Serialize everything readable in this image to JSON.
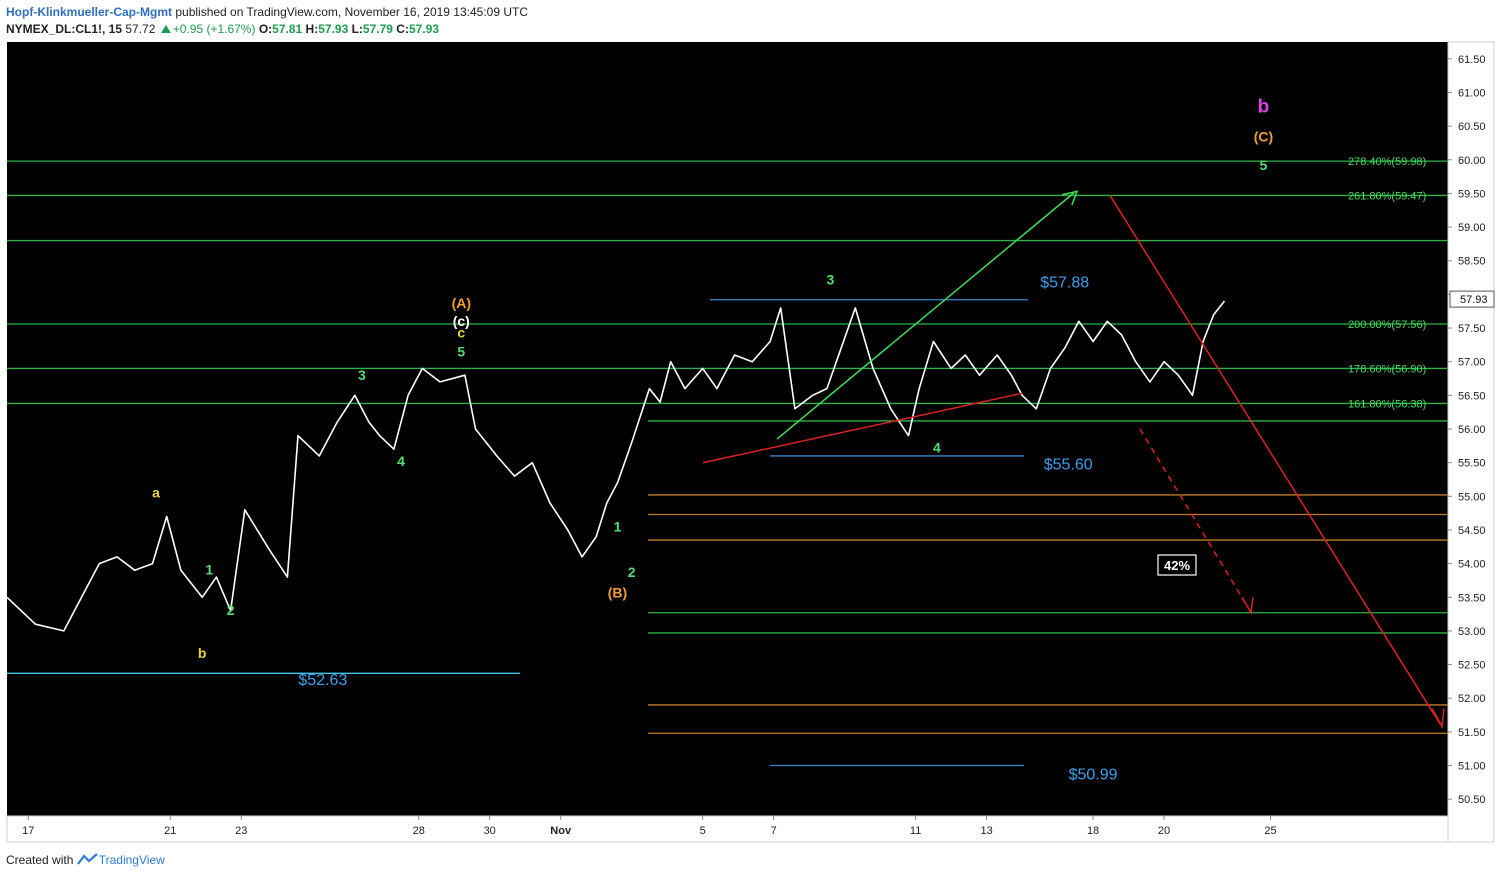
{
  "header": {
    "publisher": "Hopf-Klinkmueller-Cap-Mgmt",
    "published_text": "published on TradingView.com, November 16, 2019 13:45:09 UTC",
    "symbol": "NYMEX_DL:CL1!, 15",
    "last": "57.72",
    "change": "+0.95 (+1.67%)",
    "o_label": "O:",
    "o": "57.81",
    "h_label": "H:",
    "h": "57.93",
    "l_label": "L:",
    "l": "57.79",
    "c_label": "C:",
    "c": "57.93"
  },
  "footer": {
    "created": "Created with",
    "brand": "TradingView"
  },
  "chart_data": {
    "type": "line",
    "ylim": [
      50.25,
      61.75
    ],
    "y_ticks": [
      50.5,
      51,
      51.5,
      52,
      52.5,
      53,
      53.5,
      54,
      54.5,
      55,
      55.5,
      56,
      56.5,
      57,
      57.5,
      58,
      58.5,
      59,
      59.5,
      60,
      60.5,
      61,
      61.5
    ],
    "x_ticks": [
      "17",
      "21",
      "23",
      "28",
      "30",
      "Nov",
      "5",
      "7",
      "11",
      "13",
      "18",
      "20",
      "25"
    ],
    "x_tick_pos": [
      0,
      4,
      6,
      11,
      13,
      15,
      19,
      21,
      25,
      27,
      30,
      32,
      35
    ],
    "xlim": [
      -0.6,
      40
    ],
    "current_price": "57.93",
    "price_path": [
      [
        -0.6,
        53.5
      ],
      [
        0.2,
        53.1
      ],
      [
        1.0,
        53.0
      ],
      [
        2.0,
        54.0
      ],
      [
        2.5,
        54.1
      ],
      [
        3.0,
        53.9
      ],
      [
        3.5,
        54.0
      ],
      [
        3.9,
        54.7
      ],
      [
        4.3,
        53.9
      ],
      [
        4.9,
        53.5
      ],
      [
        5.3,
        53.8
      ],
      [
        5.7,
        53.3
      ],
      [
        6.1,
        54.8
      ],
      [
        6.8,
        54.2
      ],
      [
        7.3,
        53.8
      ],
      [
        7.6,
        55.9
      ],
      [
        8.2,
        55.6
      ],
      [
        8.7,
        56.1
      ],
      [
        9.2,
        56.5
      ],
      [
        9.6,
        56.1
      ],
      [
        9.9,
        55.9
      ],
      [
        10.3,
        55.7
      ],
      [
        10.7,
        56.5
      ],
      [
        11.1,
        56.9
      ],
      [
        11.6,
        56.7
      ],
      [
        12.3,
        56.8
      ],
      [
        12.6,
        56.0
      ],
      [
        13.2,
        55.6
      ],
      [
        13.7,
        55.3
      ],
      [
        14.2,
        55.5
      ],
      [
        14.7,
        54.9
      ],
      [
        15.2,
        54.5
      ],
      [
        15.6,
        54.1
      ],
      [
        16.0,
        54.4
      ],
      [
        16.3,
        54.9
      ],
      [
        16.6,
        55.2
      ],
      [
        17.0,
        55.8
      ],
      [
        17.5,
        56.6
      ],
      [
        17.8,
        56.4
      ],
      [
        18.1,
        57.0
      ],
      [
        18.5,
        56.6
      ],
      [
        19.0,
        56.9
      ],
      [
        19.4,
        56.6
      ],
      [
        19.9,
        57.1
      ],
      [
        20.4,
        57.0
      ],
      [
        20.9,
        57.3
      ],
      [
        21.2,
        57.8
      ],
      [
        21.6,
        56.3
      ],
      [
        22.1,
        56.5
      ],
      [
        22.5,
        56.6
      ],
      [
        22.9,
        57.2
      ],
      [
        23.3,
        57.8
      ],
      [
        23.8,
        56.9
      ],
      [
        24.3,
        56.3
      ],
      [
        24.8,
        55.9
      ],
      [
        25.1,
        56.6
      ],
      [
        25.5,
        57.3
      ],
      [
        26.0,
        56.9
      ],
      [
        26.4,
        57.1
      ],
      [
        26.8,
        56.8
      ],
      [
        27.3,
        57.1
      ],
      [
        27.7,
        56.8
      ],
      [
        28.0,
        56.5
      ],
      [
        28.4,
        56.3
      ],
      [
        28.8,
        56.9
      ],
      [
        29.2,
        57.2
      ],
      [
        29.6,
        57.6
      ],
      [
        30.0,
        57.3
      ],
      [
        30.4,
        57.6
      ],
      [
        30.8,
        57.4
      ],
      [
        31.2,
        57.0
      ],
      [
        31.6,
        56.7
      ],
      [
        32.0,
        57.0
      ],
      [
        32.4,
        56.8
      ],
      [
        32.8,
        56.5
      ],
      [
        33.1,
        57.3
      ],
      [
        33.4,
        57.7
      ],
      [
        33.7,
        57.9
      ]
    ],
    "annotations": [
      {
        "text": "a",
        "x": 3.6,
        "y": 54.98,
        "color": "#e8d530"
      },
      {
        "text": "b",
        "x": 4.9,
        "y": 52.6,
        "color": "#e8d530"
      },
      {
        "text": "1",
        "x": 5.1,
        "y": 53.84,
        "color": "#50e070"
      },
      {
        "text": "2",
        "x": 5.7,
        "y": 53.24,
        "color": "#50e070"
      },
      {
        "text": "3",
        "x": 9.4,
        "y": 56.73,
        "color": "#50e070"
      },
      {
        "text": "4",
        "x": 10.5,
        "y": 55.45,
        "color": "#50e070"
      },
      {
        "text": "5",
        "x": 12.2,
        "y": 57.08,
        "color": "#50e070"
      },
      {
        "text": "c",
        "x": 12.2,
        "y": 57.36,
        "color": "#e8d530"
      },
      {
        "text": "(c)",
        "x": 12.2,
        "y": 57.53,
        "color": "#ffffff"
      },
      {
        "text": "(A)",
        "x": 12.2,
        "y": 57.8,
        "color": "#f0a030"
      },
      {
        "text": "1",
        "x": 16.6,
        "y": 54.48,
        "color": "#50e070"
      },
      {
        "text": "2",
        "x": 17.0,
        "y": 53.8,
        "color": "#50e070"
      },
      {
        "text": "(B)",
        "x": 16.6,
        "y": 53.5,
        "color": "#f0a030"
      },
      {
        "text": "3",
        "x": 22.6,
        "y": 58.15,
        "color": "#50e070"
      },
      {
        "text": "4",
        "x": 25.6,
        "y": 55.65,
        "color": "#50e070"
      },
      {
        "text": "5",
        "x": 34.8,
        "y": 59.85,
        "color": "#50e070"
      },
      {
        "text": "(C)",
        "x": 34.8,
        "y": 60.27,
        "color": "#f0a030"
      },
      {
        "text": "b",
        "x": 34.8,
        "y": 60.7,
        "color": "#e040e0"
      }
    ],
    "price_labels": [
      {
        "text": "$52.63",
        "x": 8.3,
        "y": 52.2
      },
      {
        "text": "$57.88",
        "x": 29.2,
        "y": 58.1
      },
      {
        "text": "$55.60",
        "x": 29.3,
        "y": 55.4
      },
      {
        "text": "$50.99",
        "x": 30.0,
        "y": 50.79
      }
    ],
    "fib_labels": [
      {
        "text": "278.40%(59.98)",
        "y": 59.98
      },
      {
        "text": "261.80%(59.47)",
        "y": 59.47
      },
      {
        "text": "200.00%(57.56)",
        "y": 57.56
      },
      {
        "text": "178.60%(56.90)",
        "y": 56.9
      },
      {
        "text": "161.80%(56.38)",
        "y": 56.38
      }
    ],
    "probability_label": "42%"
  }
}
